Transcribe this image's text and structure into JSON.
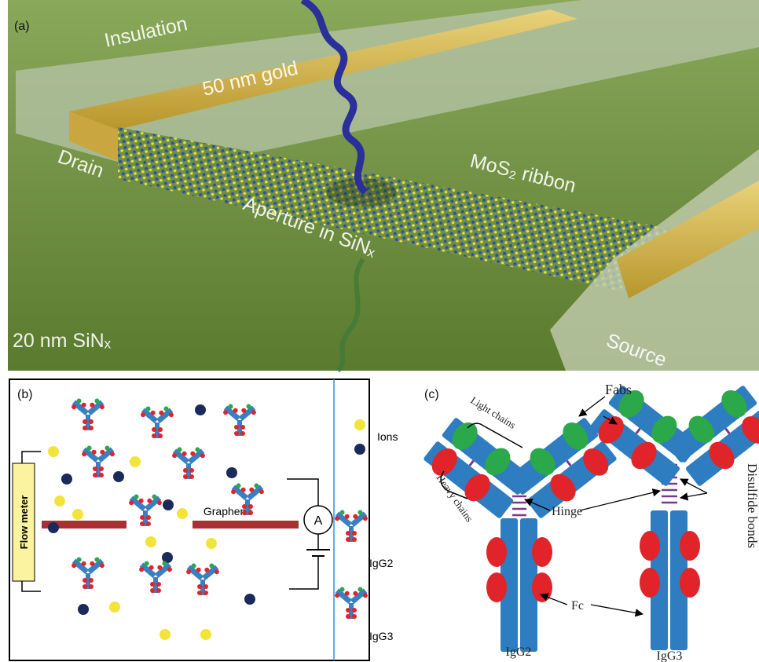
{
  "panel_a": {
    "label": "(a)",
    "insulation": "Insulation",
    "gold": "50 nm gold",
    "drain": "Drain",
    "ribbon": "MoS₂ ribbon",
    "aperture": "Aperture in SiNₓ",
    "membrane": "20 nm SiNₓ",
    "source": "Source"
  },
  "panel_b": {
    "label": "(b)",
    "flow_meter": "Flow meter",
    "graphene": "Graphene",
    "ammeter": "A",
    "legend": {
      "ions": "Ions",
      "igg2": "IgG2",
      "igg3": "IgG3"
    }
  },
  "panel_c": {
    "label": "(c)",
    "fabs": "Fabs",
    "light_chains": "Light chains",
    "heavy_chains": "Heavy chains",
    "hinge": "Hinge",
    "disulfide": "Disulfide bonds",
    "fc": "Fc",
    "igg2": "IgG2",
    "igg3": "IgG3"
  }
}
